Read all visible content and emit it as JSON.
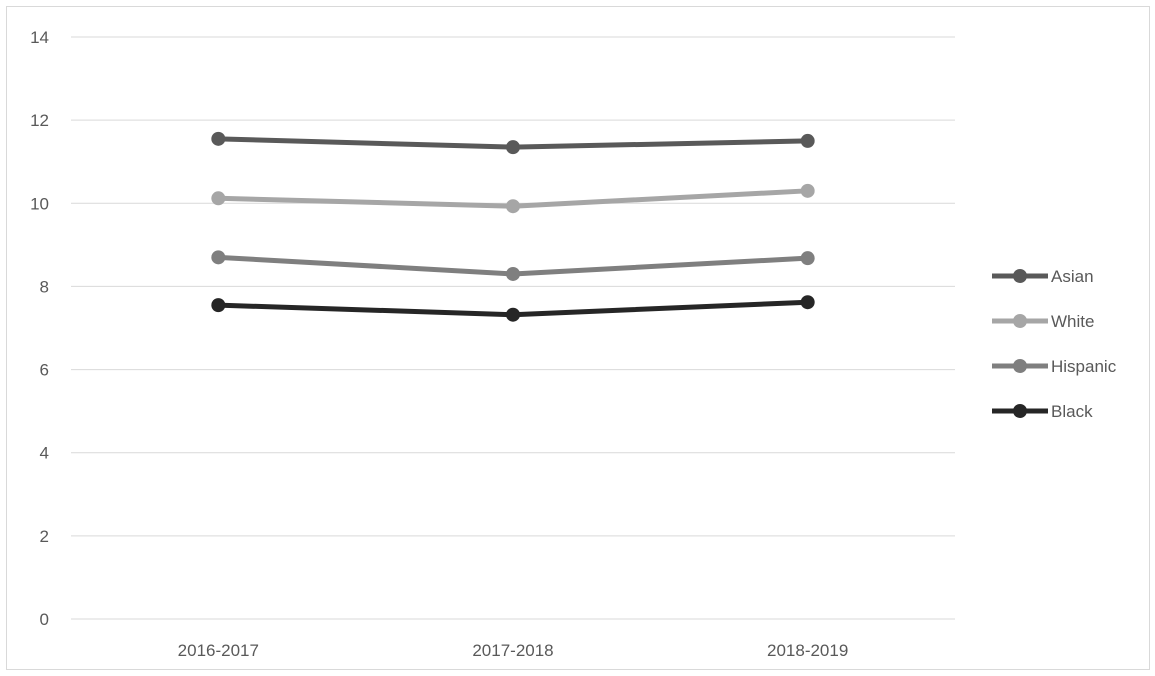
{
  "chart_data": {
    "type": "line",
    "title": "",
    "xlabel": "",
    "ylabel": "",
    "categories": [
      "2016-2017",
      "2017-2018",
      "2018-2019"
    ],
    "ylim": [
      0,
      14
    ],
    "yticks": [
      0,
      2,
      4,
      6,
      8,
      10,
      12,
      14
    ],
    "grid": true,
    "legend_position": "right",
    "series": [
      {
        "name": "Asian",
        "values": [
          11.55,
          11.35,
          11.5
        ],
        "color": "#595959"
      },
      {
        "name": "White",
        "values": [
          10.12,
          9.93,
          10.3
        ],
        "color": "#a6a6a6"
      },
      {
        "name": "Hispanic",
        "values": [
          8.7,
          8.3,
          8.68
        ],
        "color": "#7f7f7f"
      },
      {
        "name": "Black",
        "values": [
          7.55,
          7.32,
          7.62
        ],
        "color": "#262626"
      }
    ]
  }
}
